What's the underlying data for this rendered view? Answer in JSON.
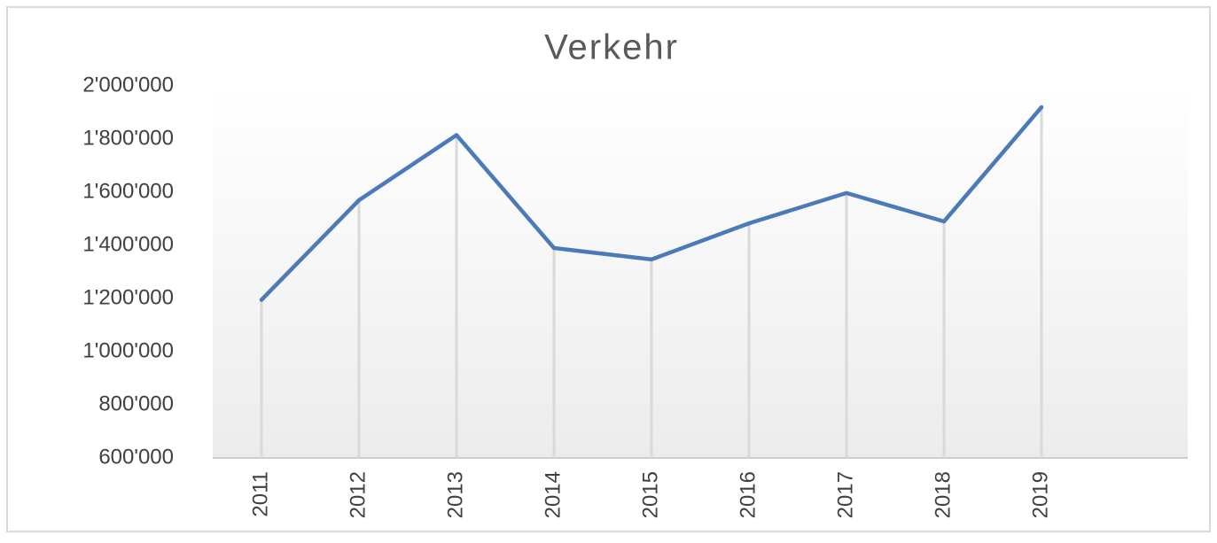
{
  "chart_data": {
    "type": "line",
    "title": "Verkehr",
    "categories": [
      "2011",
      "2012",
      "2013",
      "2014",
      "2015",
      "2016",
      "2017",
      "2018",
      "2019",
      null
    ],
    "series": [
      {
        "name": "Verkehr",
        "color": "#4a7ab8",
        "values": [
          1195000,
          1570000,
          1815000,
          1390000,
          1347000,
          1483000,
          1597000,
          1490000,
          1920000,
          null
        ]
      }
    ],
    "ylim": [
      600000,
      2000000
    ],
    "yticks": [
      {
        "value": 600000,
        "label": "600'000"
      },
      {
        "value": 800000,
        "label": "800'000"
      },
      {
        "value": 1000000,
        "label": "1'000'000"
      },
      {
        "value": 1200000,
        "label": "1'200'000"
      },
      {
        "value": 1400000,
        "label": "1'400'000"
      },
      {
        "value": 1600000,
        "label": "1'600'000"
      },
      {
        "value": 1800000,
        "label": "1'800'000"
      },
      {
        "value": 2000000,
        "label": "2'000'000"
      }
    ],
    "drop_lines": true,
    "grid": false
  }
}
